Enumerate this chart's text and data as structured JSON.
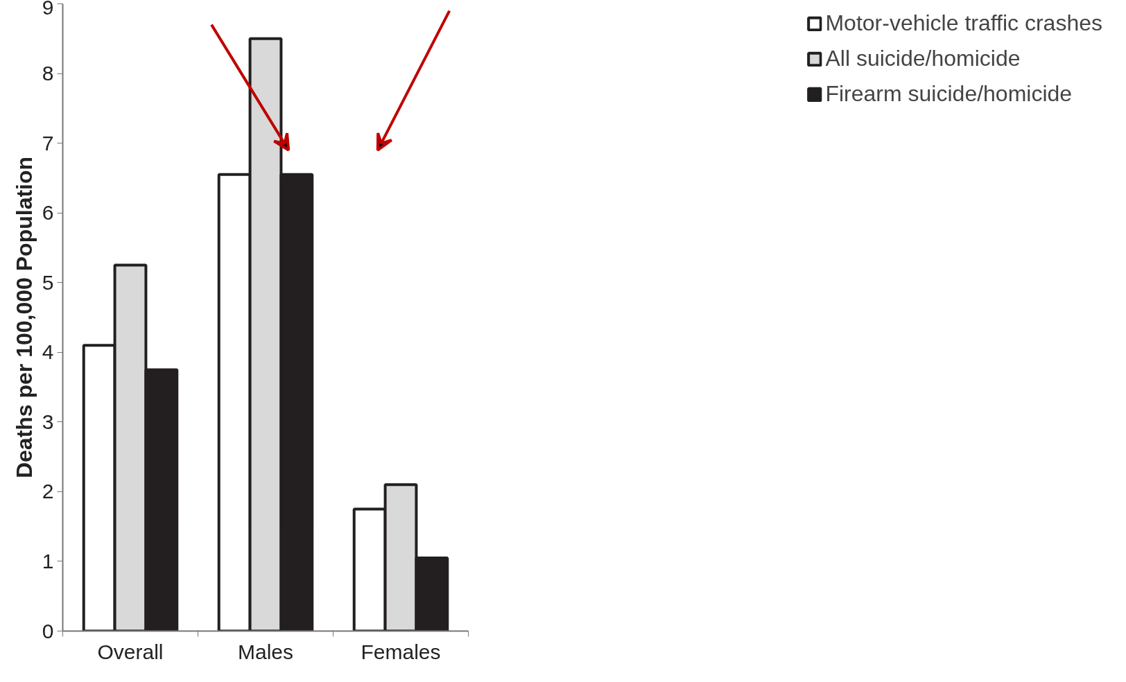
{
  "chart_data": {
    "type": "bar",
    "ylabel": "Deaths per 100,000 Population",
    "categories": [
      "Overall",
      "Males",
      "Females"
    ],
    "series": [
      {
        "name": "Motor-vehicle traffic crashes",
        "color": "#ffffff",
        "values": [
          4.1,
          6.55,
          1.75
        ]
      },
      {
        "name": "All suicide/homicide",
        "color": "#d9d9d9",
        "values": [
          5.25,
          8.5,
          2.1
        ]
      },
      {
        "name": "Firearm suicide/homicide",
        "color": "#231f20",
        "values": [
          3.75,
          6.55,
          1.05
        ]
      }
    ],
    "ylim": [
      0,
      9
    ],
    "yticks": [
      0,
      1,
      2,
      3,
      4,
      5,
      6,
      7,
      8,
      9
    ],
    "grid": false,
    "legend": "top right"
  }
}
